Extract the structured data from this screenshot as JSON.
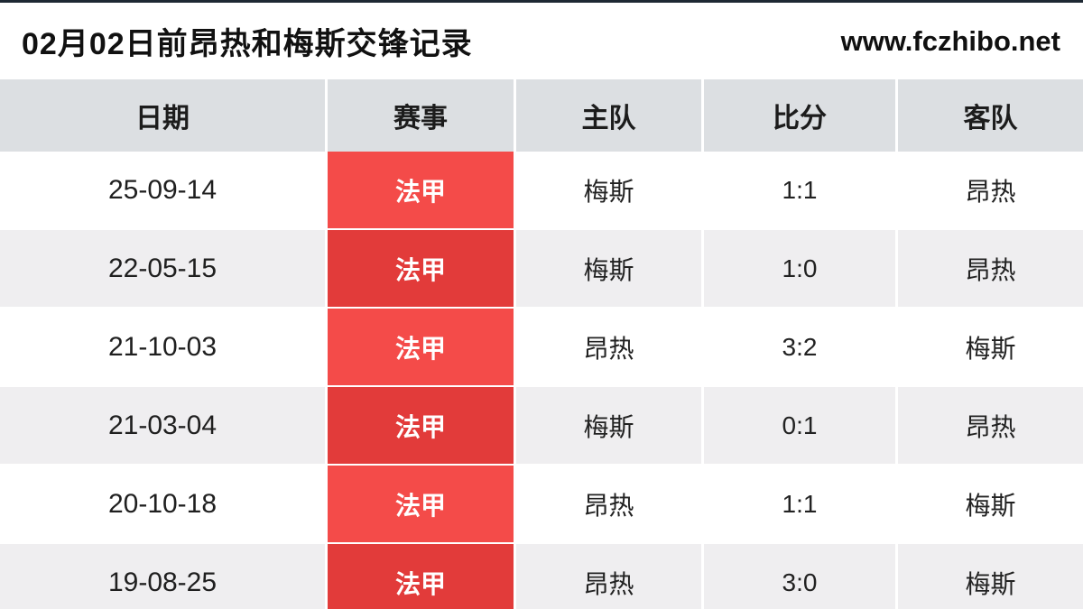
{
  "page": {
    "title": "02月02日前昂热和梅斯交锋记录",
    "site": "www.fczhibo.net"
  },
  "table": {
    "headers": [
      "日期",
      "赛事",
      "主队",
      "比分",
      "客队"
    ],
    "rows": [
      {
        "date": "25-09-14",
        "competition": "法甲",
        "home": "梅斯",
        "score": "1:1",
        "away": "昂热"
      },
      {
        "date": "22-05-15",
        "competition": "法甲",
        "home": "梅斯",
        "score": "1:0",
        "away": "昂热"
      },
      {
        "date": "21-10-03",
        "competition": "法甲",
        "home": "昂热",
        "score": "3:2",
        "away": "梅斯"
      },
      {
        "date": "21-03-04",
        "competition": "法甲",
        "home": "梅斯",
        "score": "0:1",
        "away": "昂热"
      },
      {
        "date": "20-10-18",
        "competition": "法甲",
        "home": "昂热",
        "score": "1:1",
        "away": "梅斯"
      },
      {
        "date": "19-08-25",
        "competition": "法甲",
        "home": "昂热",
        "score": "3:0",
        "away": "梅斯"
      }
    ]
  },
  "colors": {
    "badge_red": "#f44b49",
    "badge_red_dark": "#e23b3a",
    "header_bg": "#dcdfe2",
    "row_alt_bg": "#efeef0",
    "top_edge": "#1e2833"
  }
}
